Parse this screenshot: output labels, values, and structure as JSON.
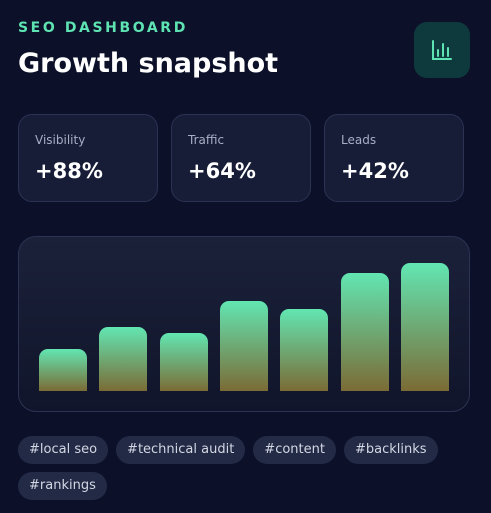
{
  "header": {
    "eyebrow": "SEO DASHBOARD",
    "title": "Growth snapshot"
  },
  "stats": [
    {
      "label": "Visibility",
      "value": "+88%"
    },
    {
      "label": "Traffic",
      "value": "+64%"
    },
    {
      "label": "Leads",
      "value": "+42%"
    }
  ],
  "chart_data": {
    "type": "bar",
    "values": [
      42,
      64,
      58,
      90,
      82,
      118,
      128
    ]
  },
  "tags": [
    "#local seo",
    "#technical audit",
    "#content",
    "#backlinks",
    "#rankings"
  ]
}
